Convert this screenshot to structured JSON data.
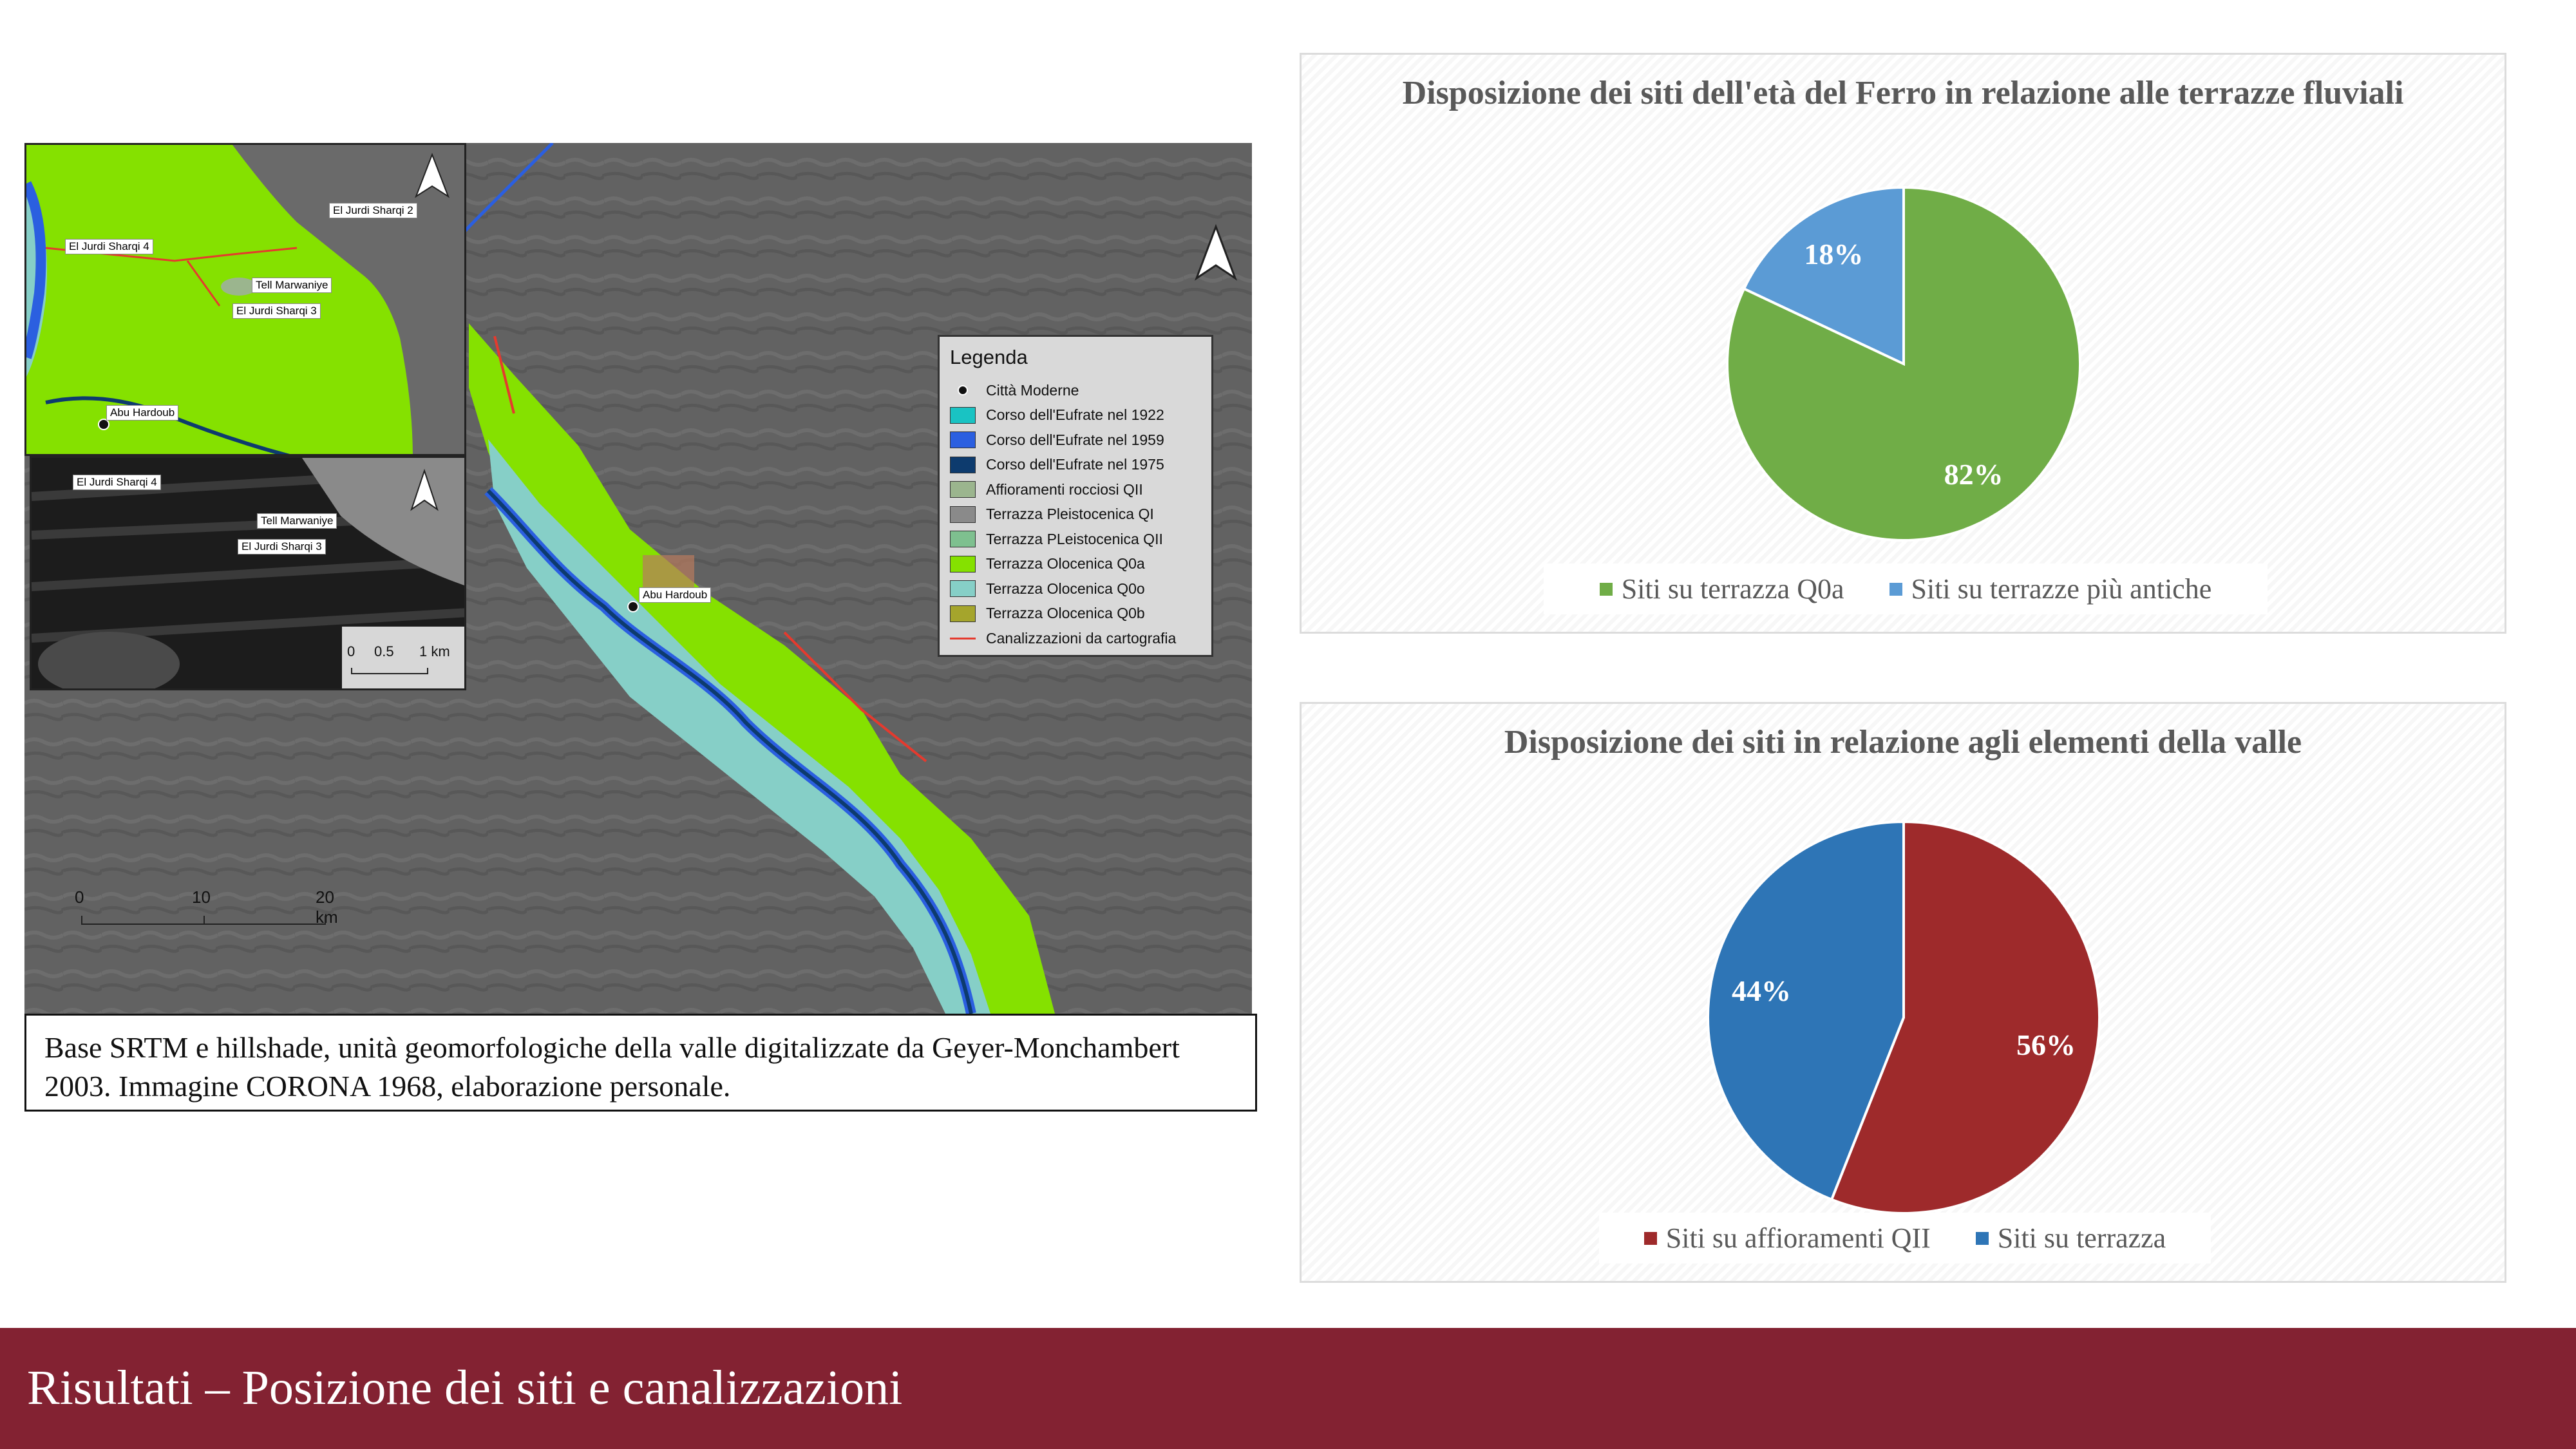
{
  "map": {
    "inset_site_labels": [
      "El Jurdi Sharqi 2",
      "El Jurdi Sharqi 4",
      "Tell Marwaniye",
      "El Jurdi Sharqi 3",
      "Abu Hardoub"
    ],
    "corona_site_labels": [
      "El Jurdi Sharqi 4",
      "Tell Marwaniye",
      "El Jurdi Sharqi 3"
    ],
    "main_site_label": "Abu Hardoub",
    "inset_scale": {
      "t0": "0",
      "t1": "0.5",
      "t2": "1 km"
    },
    "scale": {
      "t0": "0",
      "t1": "10",
      "t2": "20 km"
    },
    "legend": {
      "title": "Legenda",
      "items": [
        {
          "label": "Città Moderne",
          "kind": "dot",
          "color": "#111111"
        },
        {
          "label": "Corso dell'Eufrate nel 1922",
          "kind": "fill",
          "color": "#19c3c3"
        },
        {
          "label": "Corso dell'Eufrate nel 1959",
          "kind": "fill",
          "color": "#2b5fe0"
        },
        {
          "label": "Corso dell'Eufrate nel 1975",
          "kind": "fill",
          "color": "#0d3b6e"
        },
        {
          "label": "Affioramenti rocciosi QII",
          "kind": "fill",
          "color": "#9bb58e"
        },
        {
          "label": "Terrazza Pleistocenica QI",
          "kind": "fill",
          "color": "#8a8a8a"
        },
        {
          "label": "Terrazza PLeistocenica QII",
          "kind": "fill",
          "color": "#7ec08f"
        },
        {
          "label": "Terrazza Olocenica Q0a",
          "kind": "fill",
          "color": "#85e100"
        },
        {
          "label": "Terrazza Olocenica Q0o",
          "kind": "fill",
          "color": "#86cfc7"
        },
        {
          "label": "Terrazza Olocenica Q0b",
          "kind": "fill",
          "color": "#a5a52c"
        },
        {
          "label": "Canalizzazioni da cartografia",
          "kind": "line",
          "color": "#e53a2e"
        }
      ]
    },
    "caption": "Base SRTM e hillshade, unità geomorfologiche della valle digitalizzate da Geyer-Monchambert 2003. Immagine CORONA 1968, elaborazione personale."
  },
  "chart_data": [
    {
      "type": "pie",
      "title": "Disposizione dei siti dell'età del Ferro in relazione alle terrazze fluviali",
      "categories": [
        "Siti su terrazza Q0a",
        "Siti su terrazze più antiche"
      ],
      "values": [
        82,
        18
      ],
      "labels": [
        "82%",
        "18%"
      ],
      "colors": [
        "#70ad47",
        "#5b9bd5"
      ],
      "legend_position": "bottom"
    },
    {
      "type": "pie",
      "title": "Disposizione dei siti in relazione agli elementi della valle",
      "categories": [
        "Siti su affioramenti QII",
        "Siti su terrazza"
      ],
      "values": [
        56,
        44
      ],
      "labels": [
        "56%",
        "44%"
      ],
      "colors": [
        "#9e2a2b",
        "#2e75b6"
      ],
      "legend_position": "bottom"
    }
  ],
  "footer": {
    "title": "Risultati – Posizione dei siti e canalizzazioni"
  }
}
